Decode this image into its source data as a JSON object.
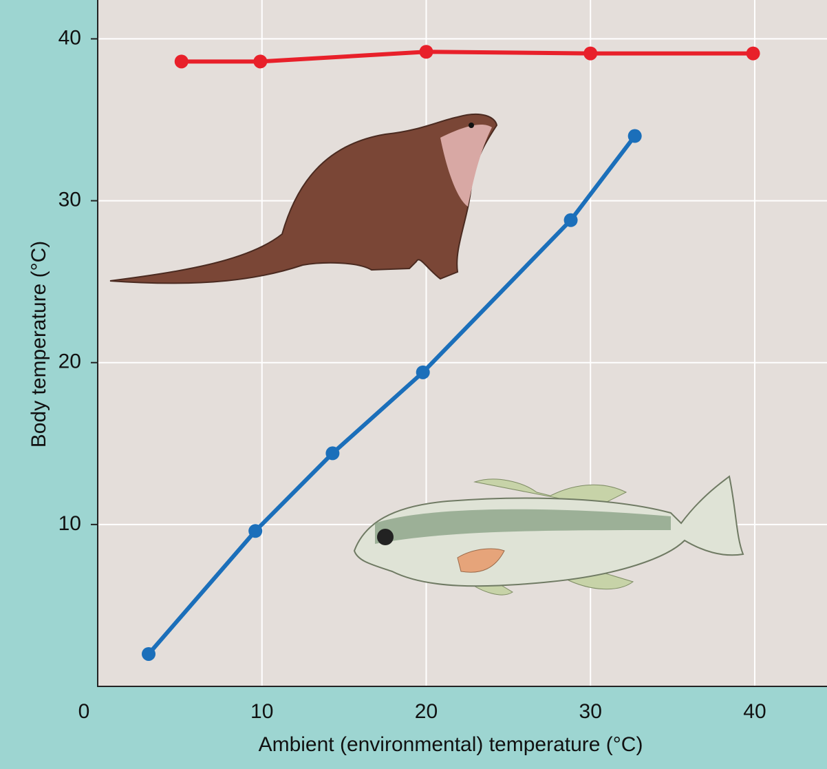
{
  "chart_data": {
    "type": "line",
    "x_label": "Ambient (environmental) temperature (°C)",
    "y_label": "Body temperature (°C)",
    "xlim": [
      0,
      44.4
    ],
    "ylim": [
      0,
      42.4
    ],
    "xticks": [
      0,
      10,
      20,
      30,
      40
    ],
    "yticks": [
      10,
      20,
      30,
      40
    ],
    "grid": true,
    "series": [
      {
        "color": "#e8202a",
        "x": [
          5.1,
          9.9,
          20.0,
          30.0,
          39.9
        ],
        "values": [
          38.6,
          38.6,
          39.2,
          39.1,
          39.1
        ]
      },
      {
        "color": "#1b6fba",
        "x": [
          3.1,
          9.6,
          14.3,
          19.8,
          28.8,
          32.7
        ],
        "values": [
          2.0,
          9.6,
          14.4,
          19.4,
          28.8,
          34.0
        ]
      }
    ]
  }
}
